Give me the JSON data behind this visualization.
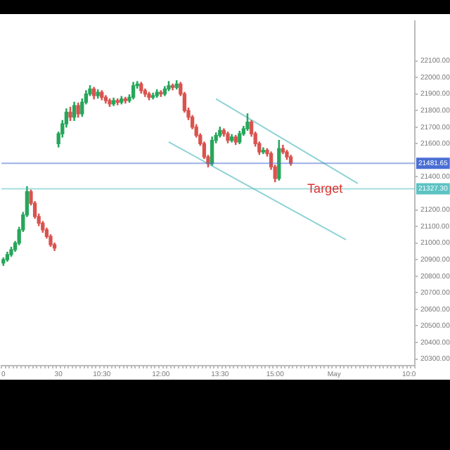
{
  "chart_data": {
    "type": "candlestick",
    "categories": [
      "0",
      null,
      null,
      null,
      null,
      null,
      null,
      null,
      null,
      null,
      null,
      null,
      null,
      null,
      "30",
      null,
      null,
      null,
      null,
      null,
      null,
      null,
      null,
      null,
      null,
      "10:30",
      null,
      null,
      null,
      null,
      null,
      null,
      null,
      null,
      null,
      null,
      null,
      null,
      null,
      null,
      "12:00",
      null,
      null,
      null,
      null,
      null,
      null,
      null,
      null,
      null,
      null,
      null,
      null,
      null,
      null,
      "13:30",
      null,
      null,
      null,
      null,
      null,
      null,
      null,
      null,
      null,
      null,
      null,
      null,
      null,
      "15:00",
      null,
      null,
      null,
      null,
      null,
      null,
      null,
      null,
      null,
      null,
      null,
      null,
      null,
      null,
      "May",
      null,
      null,
      null,
      null,
      null,
      null,
      null,
      null,
      null,
      null,
      null,
      null,
      null,
      null,
      null,
      null,
      null,
      null,
      "10:0",
      null
    ],
    "ylim": [
      20260,
      22340
    ],
    "yticks": [
      {
        "value": 20300,
        "label": "20300.00"
      },
      {
        "value": 20400,
        "label": "20400.00"
      },
      {
        "value": 20500,
        "label": "20500.00"
      },
      {
        "value": 20600,
        "label": "20600.00"
      },
      {
        "value": 20700,
        "label": "20700.00"
      },
      {
        "value": 20800,
        "label": "20800.00"
      },
      {
        "value": 20900,
        "label": "20900.00"
      },
      {
        "value": 21000,
        "label": "21000.00"
      },
      {
        "value": 21100,
        "label": "21100.00"
      },
      {
        "value": 21200,
        "label": "21200.00"
      },
      {
        "value": 21400,
        "label": "21400.00"
      },
      {
        "value": 21600,
        "label": "21600.00"
      },
      {
        "value": 21700,
        "label": "21700.00"
      },
      {
        "value": 21800,
        "label": "21800.00"
      },
      {
        "value": 21900,
        "label": "21900.00"
      },
      {
        "value": 22000,
        "label": "22000.00"
      },
      {
        "value": 22100,
        "label": "22100.00"
      }
    ],
    "grid": false,
    "series": [
      {
        "ohlc": [
          [
            20880,
            20910,
            20865,
            20900
          ],
          [
            20900,
            20945,
            20890,
            20930
          ],
          [
            20930,
            20975,
            20920,
            20960
          ],
          [
            20960,
            21010,
            20950,
            21000
          ],
          [
            21000,
            21095,
            20990,
            21080
          ],
          [
            21080,
            21185,
            21070,
            21170
          ],
          [
            21170,
            21340,
            21160,
            21310
          ],
          [
            21310,
            21320,
            21230,
            21240
          ],
          [
            21240,
            21250,
            21150,
            21160
          ],
          [
            21160,
            21175,
            21105,
            21120
          ],
          [
            21120,
            21130,
            21065,
            21080
          ],
          [
            21080,
            21090,
            21030,
            21040
          ],
          [
            21040,
            21050,
            20980,
            20990
          ],
          [
            20990,
            21000,
            20955,
            20970
          ],
          [
            21600,
            21670,
            21580,
            21660
          ],
          [
            21660,
            21740,
            21640,
            21720
          ],
          [
            21720,
            21810,
            21700,
            21790
          ],
          [
            21790,
            21820,
            21740,
            21760
          ],
          [
            21760,
            21850,
            21740,
            21830
          ],
          [
            21830,
            21845,
            21760,
            21780
          ],
          [
            21780,
            21870,
            21765,
            21850
          ],
          [
            21850,
            21920,
            21840,
            21900
          ],
          [
            21900,
            21950,
            21890,
            21930
          ],
          [
            21930,
            21940,
            21870,
            21890
          ],
          [
            21890,
            21925,
            21875,
            21910
          ],
          [
            21910,
            21920,
            21865,
            21880
          ],
          [
            21880,
            21890,
            21845,
            21860
          ],
          [
            21860,
            21870,
            21825,
            21840
          ],
          [
            21840,
            21875,
            21830,
            21860
          ],
          [
            21860,
            21870,
            21835,
            21850
          ],
          [
            21850,
            21885,
            21840,
            21870
          ],
          [
            21870,
            21880,
            21845,
            21860
          ],
          [
            21860,
            21895,
            21850,
            21880
          ],
          [
            21880,
            21970,
            21870,
            21950
          ],
          [
            21950,
            21975,
            21935,
            21960
          ],
          [
            21960,
            21970,
            21905,
            21920
          ],
          [
            21920,
            21930,
            21885,
            21900
          ],
          [
            21900,
            21910,
            21865,
            21880
          ],
          [
            21880,
            21905,
            21870,
            21890
          ],
          [
            21890,
            21925,
            21880,
            21910
          ],
          [
            21910,
            21920,
            21885,
            21900
          ],
          [
            21900,
            21945,
            21890,
            21930
          ],
          [
            21930,
            21975,
            21920,
            21950
          ],
          [
            21950,
            21960,
            21925,
            21940
          ],
          [
            21940,
            21980,
            21930,
            21960
          ],
          [
            21960,
            21970,
            21890,
            21900
          ],
          [
            21900,
            21910,
            21790,
            21800
          ],
          [
            21800,
            21815,
            21745,
            21760
          ],
          [
            21760,
            21770,
            21690,
            21700
          ],
          [
            21700,
            21715,
            21640,
            21650
          ],
          [
            21650,
            21660,
            21590,
            21600
          ],
          [
            21600,
            21610,
            21510,
            21520
          ],
          [
            21520,
            21530,
            21460,
            21480
          ],
          [
            21480,
            21640,
            21470,
            21620
          ],
          [
            21620,
            21665,
            21605,
            21650
          ],
          [
            21650,
            21700,
            21640,
            21680
          ],
          [
            21680,
            21690,
            21645,
            21660
          ],
          [
            21660,
            21670,
            21605,
            21620
          ],
          [
            21620,
            21655,
            21610,
            21640
          ],
          [
            21640,
            21650,
            21595,
            21610
          ],
          [
            21610,
            21675,
            21600,
            21660
          ],
          [
            21660,
            21705,
            21650,
            21690
          ],
          [
            21690,
            21780,
            21680,
            21730
          ],
          [
            21730,
            21740,
            21645,
            21660
          ],
          [
            21660,
            21670,
            21585,
            21600
          ],
          [
            21600,
            21610,
            21535,
            21550
          ],
          [
            21550,
            21575,
            21540,
            21560
          ],
          [
            21560,
            21570,
            21525,
            21540
          ],
          [
            21540,
            21550,
            21445,
            21460
          ],
          [
            21460,
            21470,
            21370,
            21390
          ],
          [
            21390,
            21620,
            21380,
            21570
          ],
          [
            21570,
            21590,
            21540,
            21550
          ],
          [
            21550,
            21560,
            21505,
            21520
          ],
          [
            21520,
            21530,
            21470,
            21482
          ],
          null,
          null,
          null,
          null,
          null,
          null,
          null,
          null,
          null,
          null,
          null,
          null,
          null,
          null,
          null,
          null,
          null,
          null,
          null,
          null,
          null,
          null,
          null,
          null,
          null,
          null,
          null,
          null,
          null,
          null,
          null
        ],
        "colors": [
          "#26a65b",
          "#26a65b",
          "#26a65b",
          "#26a65b",
          "#26a65b",
          "#26a65b",
          "#26a65b",
          "#d9534f",
          "#d9534f",
          "#d9534f",
          "#d9534f",
          "#d9534f",
          "#d9534f",
          "#d9534f",
          "#26a65b",
          "#26a65b",
          "#26a65b",
          "#d9534f",
          "#26a65b",
          "#d9534f",
          "#26a65b",
          "#26a65b",
          "#26a65b",
          "#d9534f",
          "#26a65b",
          "#d9534f",
          "#d9534f",
          "#d9534f",
          "#26a65b",
          "#d9534f",
          "#26a65b",
          "#d9534f",
          "#26a65b",
          "#26a65b",
          "#26a65b",
          "#d9534f",
          "#d9534f",
          "#d9534f",
          "#26a65b",
          "#26a65b",
          "#d9534f",
          "#26a65b",
          "#26a65b",
          "#d9534f",
          "#26a65b",
          "#d9534f",
          "#d9534f",
          "#d9534f",
          "#d9534f",
          "#d9534f",
          "#d9534f",
          "#d9534f",
          "#d9534f",
          "#26a65b",
          "#26a65b",
          "#26a65b",
          "#d9534f",
          "#d9534f",
          "#26a65b",
          "#d9534f",
          "#26a65b",
          "#26a65b",
          "#26a65b",
          "#d9534f",
          "#d9534f",
          "#d9534f",
          "#26a65b",
          "#d9534f",
          "#d9534f",
          "#d9534f",
          "#26a65b",
          "#d9534f",
          "#d9534f",
          "#d9534f",
          null,
          null,
          null,
          null,
          null,
          null,
          null,
          null,
          null,
          null,
          null,
          null,
          null,
          null,
          null,
          null,
          null,
          null,
          null,
          null,
          null,
          null,
          null,
          null,
          null,
          null,
          null,
          null,
          null,
          null,
          null
        ]
      },
      {
        "type": "line",
        "color": "#8fd3d6",
        "values": [
          null,
          null,
          null,
          null,
          null,
          null,
          null,
          null,
          null,
          null,
          null,
          null,
          null,
          null,
          null,
          null,
          null,
          null,
          null,
          null,
          null,
          null,
          null,
          null,
          null,
          null,
          null,
          null,
          null,
          null,
          null,
          null,
          null,
          null,
          null,
          null,
          null,
          null,
          null,
          null,
          null,
          null,
          null,
          null,
          null,
          null,
          null,
          null,
          null,
          null,
          null,
          null,
          null,
          null,
          21870,
          null,
          null,
          null,
          null,
          null,
          null,
          null,
          null,
          null,
          null,
          null,
          null,
          null,
          null,
          null,
          null,
          null,
          null,
          null,
          null,
          null,
          null,
          null,
          null,
          null,
          null,
          null,
          null,
          null,
          null,
          null,
          null,
          null,
          null,
          null,
          21360,
          null,
          null,
          null,
          null,
          null,
          null,
          null,
          null,
          null,
          null,
          null,
          null,
          null,
          null
        ]
      },
      {
        "type": "line",
        "color": "#8fd3d6",
        "values": [
          null,
          null,
          null,
          null,
          null,
          null,
          null,
          null,
          null,
          null,
          null,
          null,
          null,
          null,
          null,
          null,
          null,
          null,
          null,
          null,
          null,
          null,
          null,
          null,
          null,
          null,
          null,
          null,
          null,
          null,
          null,
          null,
          null,
          null,
          null,
          null,
          null,
          null,
          null,
          null,
          null,
          null,
          21610,
          null,
          null,
          null,
          null,
          null,
          null,
          null,
          null,
          null,
          null,
          null,
          null,
          null,
          null,
          null,
          null,
          null,
          null,
          null,
          null,
          null,
          null,
          null,
          null,
          null,
          null,
          null,
          null,
          null,
          null,
          null,
          null,
          null,
          null,
          null,
          null,
          null,
          null,
          null,
          null,
          null,
          null,
          null,
          null,
          21020,
          null,
          null,
          null,
          null,
          null,
          null,
          null,
          null,
          null,
          null,
          null,
          null,
          null,
          null,
          null,
          null,
          null
        ]
      }
    ],
    "ref_lines": [
      {
        "axis": "y",
        "value": 21481.65,
        "label": "21481.65",
        "color": "#4a6fd4"
      },
      {
        "axis": "y",
        "value": 21327.3,
        "label": "21327.30",
        "color": "#5cc3c3"
      }
    ],
    "annotations": [
      {
        "text": "Target",
        "y": 21327.3
      }
    ]
  }
}
